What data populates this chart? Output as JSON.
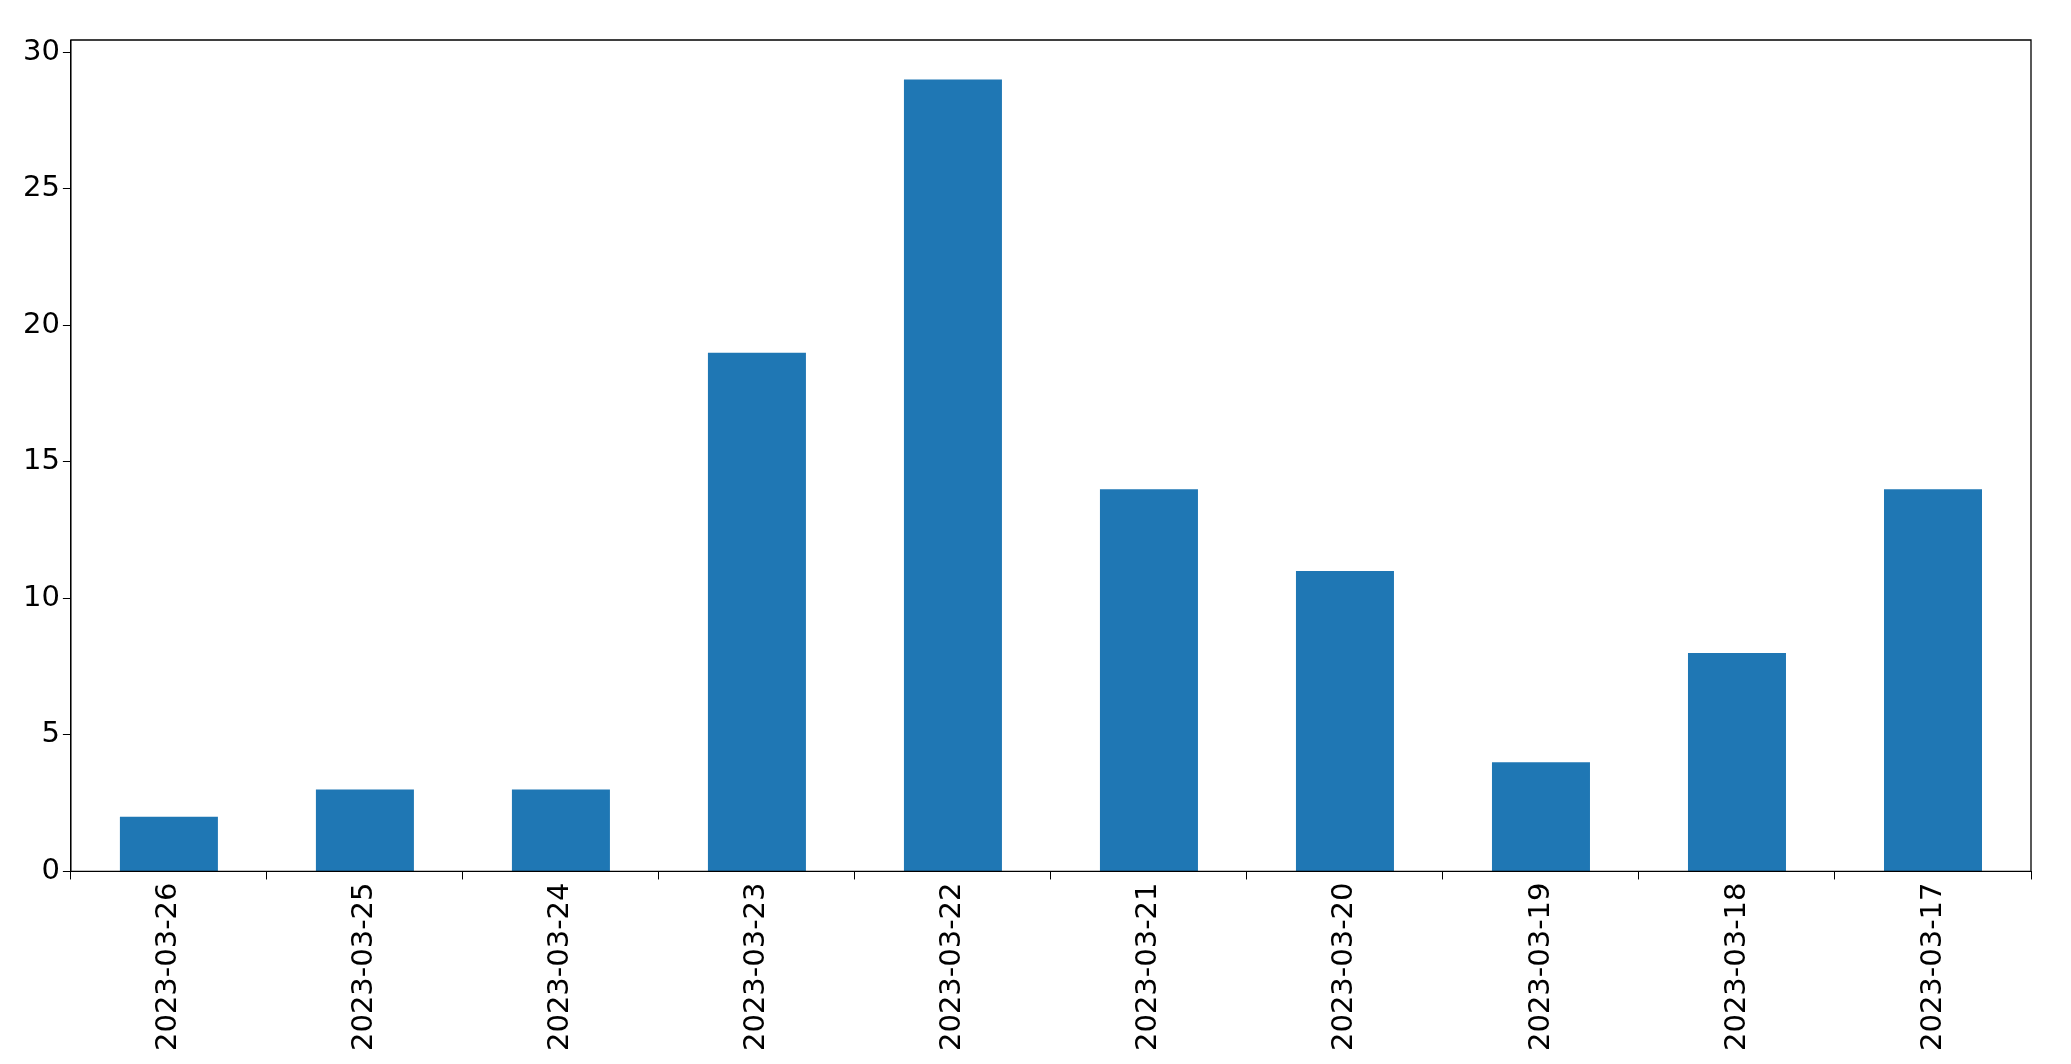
{
  "chart_data": {
    "type": "bar",
    "categories": [
      "2023-03-26",
      "2023-03-25",
      "2023-03-24",
      "2023-03-23",
      "2023-03-22",
      "2023-03-21",
      "2023-03-20",
      "2023-03-19",
      "2023-03-18",
      "2023-03-17"
    ],
    "values": [
      2,
      3,
      3,
      19,
      29,
      14,
      11,
      4,
      8,
      14
    ],
    "color": "#1f77b4",
    "ylim": [
      0,
      30.45
    ],
    "yticks": [
      0,
      5,
      10,
      15,
      20,
      25,
      30
    ],
    "grid": false,
    "legend": false
  }
}
